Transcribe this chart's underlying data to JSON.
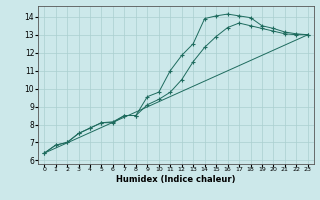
{
  "xlabel": "Humidex (Indice chaleur)",
  "bg_color": "#cce8ea",
  "grid_color": "#aacfcf",
  "line_color": "#1e6b5e",
  "xlim": [
    -0.5,
    23.5
  ],
  "ylim": [
    5.8,
    14.6
  ],
  "xticks": [
    0,
    1,
    2,
    3,
    4,
    5,
    6,
    7,
    8,
    9,
    10,
    11,
    12,
    13,
    14,
    15,
    16,
    17,
    18,
    19,
    20,
    21,
    22,
    23
  ],
  "yticks": [
    6,
    7,
    8,
    9,
    10,
    11,
    12,
    13,
    14
  ],
  "line1_x": [
    0,
    1,
    2,
    3,
    4,
    5,
    6,
    7,
    8,
    9,
    10,
    11,
    12,
    13,
    14,
    15,
    16,
    17,
    18,
    19,
    20,
    21,
    22,
    23
  ],
  "line1_y": [
    6.4,
    6.85,
    7.0,
    7.5,
    7.8,
    8.1,
    8.1,
    8.5,
    8.5,
    9.55,
    9.8,
    11.0,
    11.85,
    12.5,
    13.9,
    14.05,
    14.15,
    14.05,
    13.95,
    13.5,
    13.35,
    13.15,
    13.05,
    13.0
  ],
  "line2_x": [
    0,
    1,
    2,
    3,
    4,
    5,
    6,
    7,
    8,
    9,
    10,
    11,
    12,
    13,
    14,
    15,
    16,
    17,
    18,
    19,
    20,
    21,
    22,
    23
  ],
  "line2_y": [
    6.4,
    6.85,
    7.0,
    7.5,
    7.8,
    8.1,
    8.15,
    8.5,
    8.5,
    9.1,
    9.4,
    9.8,
    10.5,
    11.5,
    12.3,
    12.9,
    13.4,
    13.65,
    13.5,
    13.35,
    13.2,
    13.05,
    13.0,
    13.0
  ],
  "line3_x": [
    0,
    23
  ],
  "line3_y": [
    6.4,
    13.0
  ]
}
